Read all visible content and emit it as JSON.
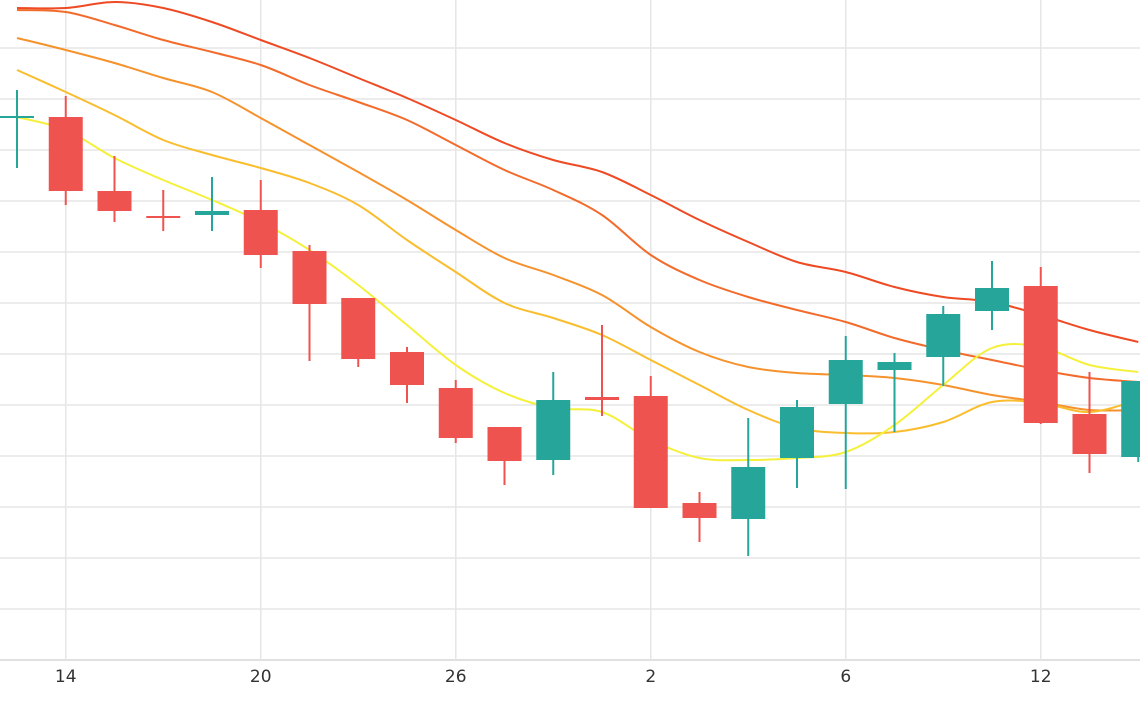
{
  "chart_data": {
    "type": "candlestick",
    "categories": [
      null,
      "14",
      null,
      null,
      null,
      "20",
      null,
      null,
      null,
      "26",
      null,
      null,
      null,
      "2",
      null,
      null,
      null,
      "6",
      null,
      null,
      null,
      "12",
      null,
      null
    ],
    "open": [
      542,
      543,
      469,
      444,
      445,
      450,
      409,
      362,
      308,
      272,
      233,
      200,
      263,
      264,
      157,
      141,
      202,
      256,
      290,
      303,
      349,
      374,
      246,
      203
    ],
    "high": [
      570,
      564,
      504,
      470,
      483,
      480,
      415,
      362,
      313,
      280,
      233,
      288,
      335,
      284,
      168,
      242,
      260,
      324,
      307,
      354,
      399,
      393,
      288,
      279
    ],
    "low": [
      492,
      455,
      438,
      429,
      429,
      392,
      299,
      293,
      257,
      217,
      175,
      185,
      244,
      152,
      118,
      104,
      172,
      171,
      228,
      274,
      330,
      236,
      187,
      198
    ],
    "close": [
      544,
      469,
      449,
      442,
      449,
      405,
      356,
      301,
      275,
      222,
      199,
      260,
      260,
      152,
      142,
      193,
      253,
      300,
      298,
      346,
      372,
      237,
      206,
      279
    ],
    "up_color": "#26a69a",
    "down_color": "#ef5350",
    "lines": [
      {
        "color": "#ee4a24",
        "values": [
          652,
          652,
          658,
          652,
          638,
          620,
          602,
          582,
          562,
          540,
          517,
          500,
          488,
          465,
          440,
          418,
          398,
          388,
          373,
          363,
          358,
          345,
          330,
          318
        ]
      },
      {
        "color": "#f36b2b",
        "values": [
          650,
          648,
          635,
          620,
          608,
          595,
          575,
          558,
          540,
          515,
          490,
          470,
          445,
          405,
          380,
          363,
          350,
          338,
          322,
          310,
          300,
          290,
          282,
          278
        ]
      },
      {
        "color": "#f6922c",
        "values": [
          622,
          610,
          597,
          582,
          568,
          542,
          515,
          488,
          460,
          430,
          402,
          385,
          365,
          333,
          308,
          293,
          287,
          285,
          282,
          275,
          265,
          258,
          250,
          250
        ]
      },
      {
        "color": "#f9bd2e",
        "values": [
          590,
          568,
          545,
          520,
          505,
          492,
          477,
          455,
          420,
          388,
          357,
          342,
          325,
          300,
          275,
          250,
          232,
          227,
          228,
          238,
          258,
          257,
          248,
          260
        ]
      },
      {
        "color": "#f5f03a",
        "values": [
          543,
          530,
          502,
          480,
          460,
          438,
          410,
          375,
          335,
          295,
          267,
          252,
          248,
          220,
          202,
          200,
          202,
          208,
          235,
          275,
          312,
          313,
          295,
          288
        ]
      }
    ],
    "ylim": [
      0,
      660
    ],
    "yticks": [
      0,
      51,
      102,
      153,
      204,
      255,
      306,
      357,
      408,
      459,
      510,
      561,
      612
    ],
    "grid": true
  }
}
